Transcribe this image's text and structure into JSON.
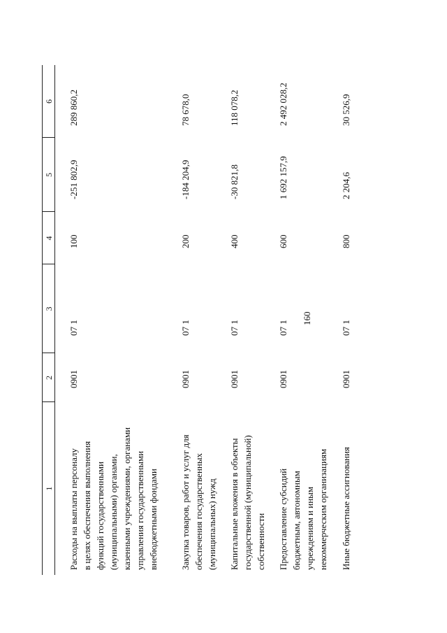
{
  "page_number": "160",
  "table": {
    "column_numbers": [
      "1",
      "2",
      "3",
      "4",
      "5",
      "6"
    ],
    "rows": [
      {
        "name_lines": [
          "Расходы на выплаты персоналу",
          "в целях обеспечения выполнения",
          "функций государственными",
          "(муниципальными) органами,",
          "казенными учреждениями, органами",
          "управления государственными",
          "внебюджетными фондами"
        ],
        "c2": "0901",
        "c3": "07 1",
        "c4": "100",
        "c5": "-251 802,9",
        "c6": "289 860,2"
      },
      {
        "name_lines": [
          "Закупка товаров, работ и услуг для",
          "обеспечения государственных",
          "(муниципальных) нужд"
        ],
        "c2": "0901",
        "c3": "07 1",
        "c4": "200",
        "c5": "-184 204,9",
        "c6": "78 678,0"
      },
      {
        "name_lines": [
          "Капитальные вложения в объекты",
          "государственной (муниципальной)",
          "собственности"
        ],
        "c2": "0901",
        "c3": "07 1",
        "c4": "400",
        "c5": "-30 821,8",
        "c6": "118 078,2"
      },
      {
        "name_lines": [
          "Предоставление субсидий",
          "бюджетным, автономным",
          "учреждениям и иным",
          "некоммерческим организациям"
        ],
        "c2": "0901",
        "c3": "07 1",
        "c4": "600",
        "c5": "1 692 157,9",
        "c6": "2 492 028,2"
      },
      {
        "name_lines": [
          "Иные бюджетные ассигнования"
        ],
        "c2": "0901",
        "c3": "07 1",
        "c4": "800",
        "c5": "2 204,6",
        "c6": "30 526,9"
      }
    ]
  }
}
